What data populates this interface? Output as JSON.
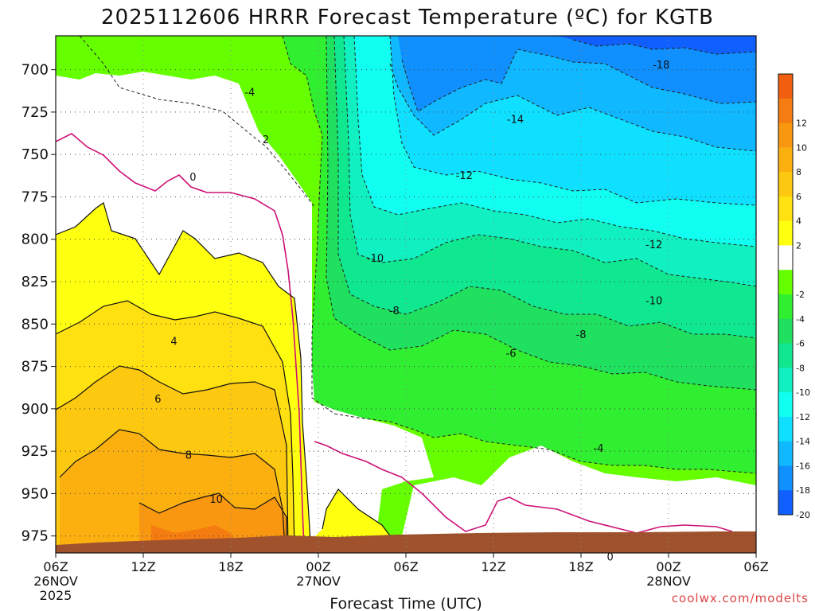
{
  "chart_data": {
    "type": "heatmap",
    "title": "2025112606 HRRR Forecast Temperature (ºC) for KGTB",
    "xlabel": "Forecast Time (UTC)",
    "ylabel": "",
    "credit": "coolwx.com/modelts",
    "x_range_hours": [
      0,
      48
    ],
    "y_range_hPa": [
      680,
      985
    ],
    "y_ticks": [
      {
        "value": 700,
        "label": "700"
      },
      {
        "value": 725,
        "label": "725"
      },
      {
        "value": 750,
        "label": "750"
      },
      {
        "value": 775,
        "label": "775"
      },
      {
        "value": 800,
        "label": "800"
      },
      {
        "value": 825,
        "label": "825"
      },
      {
        "value": 850,
        "label": "850"
      },
      {
        "value": 875,
        "label": "875"
      },
      {
        "value": 900,
        "label": "900"
      },
      {
        "value": 925,
        "label": "925"
      },
      {
        "value": 950,
        "label": "950"
      },
      {
        "value": 975,
        "label": "975"
      }
    ],
    "x_ticks": [
      {
        "hour": 0,
        "label": "06Z",
        "sub1": "26NOV",
        "sub2": "2025"
      },
      {
        "hour": 6,
        "label": "12Z",
        "sub1": "",
        "sub2": ""
      },
      {
        "hour": 12,
        "label": "18Z",
        "sub1": "",
        "sub2": ""
      },
      {
        "hour": 18,
        "label": "00Z",
        "sub1": "27NOV",
        "sub2": ""
      },
      {
        "hour": 24,
        "label": "06Z",
        "sub1": "",
        "sub2": ""
      },
      {
        "hour": 30,
        "label": "12Z",
        "sub1": "",
        "sub2": ""
      },
      {
        "hour": 36,
        "label": "18Z",
        "sub1": "",
        "sub2": ""
      },
      {
        "hour": 42,
        "label": "00Z",
        "sub1": "28NOV",
        "sub2": ""
      },
      {
        "hour": 48,
        "label": "06Z",
        "sub1": "",
        "sub2": ""
      }
    ],
    "grid": true,
    "legend": "right",
    "colorbar": [
      {
        "value": 14,
        "color": "#f06010",
        "label": ""
      },
      {
        "value": 12,
        "color": "#f47c10",
        "label": "12"
      },
      {
        "value": 10,
        "color": "#f99810",
        "label": "10"
      },
      {
        "value": 8,
        "color": "#fbb010",
        "label": "8"
      },
      {
        "value": 6,
        "color": "#fdc810",
        "label": "6"
      },
      {
        "value": 4,
        "color": "#ffe010",
        "label": "4"
      },
      {
        "value": 2,
        "color": "#ffff10",
        "label": "2"
      },
      {
        "value": 0,
        "color": "#ffffff",
        "label": ""
      },
      {
        "value": -2,
        "color": "#66ff00",
        "label": "-2"
      },
      {
        "value": -4,
        "color": "#30ee30",
        "label": "-4"
      },
      {
        "value": -6,
        "color": "#20e060",
        "label": "-6"
      },
      {
        "value": -8,
        "color": "#10e890",
        "label": "-8"
      },
      {
        "value": -10,
        "color": "#10f0c0",
        "label": "-10"
      },
      {
        "value": -12,
        "color": "#10fff0",
        "label": "-12"
      },
      {
        "value": -14,
        "color": "#10e0ff",
        "label": "-14"
      },
      {
        "value": -16,
        "color": "#10b8ff",
        "label": "-16"
      },
      {
        "value": -18,
        "color": "#1090ff",
        "label": "-18"
      },
      {
        "value": -20,
        "color": "#1060ff",
        "label": "-20"
      }
    ],
    "ground_color": "#a0522d",
    "zero_line_color": "#cc1177",
    "contour_labels": [
      {
        "text": "-18",
        "hour": 41.5,
        "p": 697
      },
      {
        "text": "-4",
        "hour": 13.3,
        "p": 713
      },
      {
        "text": "-14",
        "hour": 31.5,
        "p": 729
      },
      {
        "text": "2",
        "hour": 14.4,
        "p": 741
      },
      {
        "text": "0",
        "hour": 9.4,
        "p": 763
      },
      {
        "text": "-12",
        "hour": 28.0,
        "p": 762
      },
      {
        "text": "-12",
        "hour": 41.0,
        "p": 803
      },
      {
        "text": "-10",
        "hour": 21.9,
        "p": 811
      },
      {
        "text": "-10",
        "hour": 41.0,
        "p": 836
      },
      {
        "text": "-8",
        "hour": 23.2,
        "p": 842
      },
      {
        "text": "4",
        "hour": 8.1,
        "p": 860
      },
      {
        "text": "-8",
        "hour": 36.0,
        "p": 856
      },
      {
        "text": "-6",
        "hour": 31.2,
        "p": 867
      },
      {
        "text": "6",
        "hour": 7.0,
        "p": 894
      },
      {
        "text": "-4",
        "hour": 37.2,
        "p": 923
      },
      {
        "text": "8",
        "hour": 9.1,
        "p": 927
      },
      {
        "text": "10",
        "hour": 11.0,
        "p": 953
      },
      {
        "text": "0",
        "hour": 38.0,
        "p": 987
      }
    ]
  }
}
